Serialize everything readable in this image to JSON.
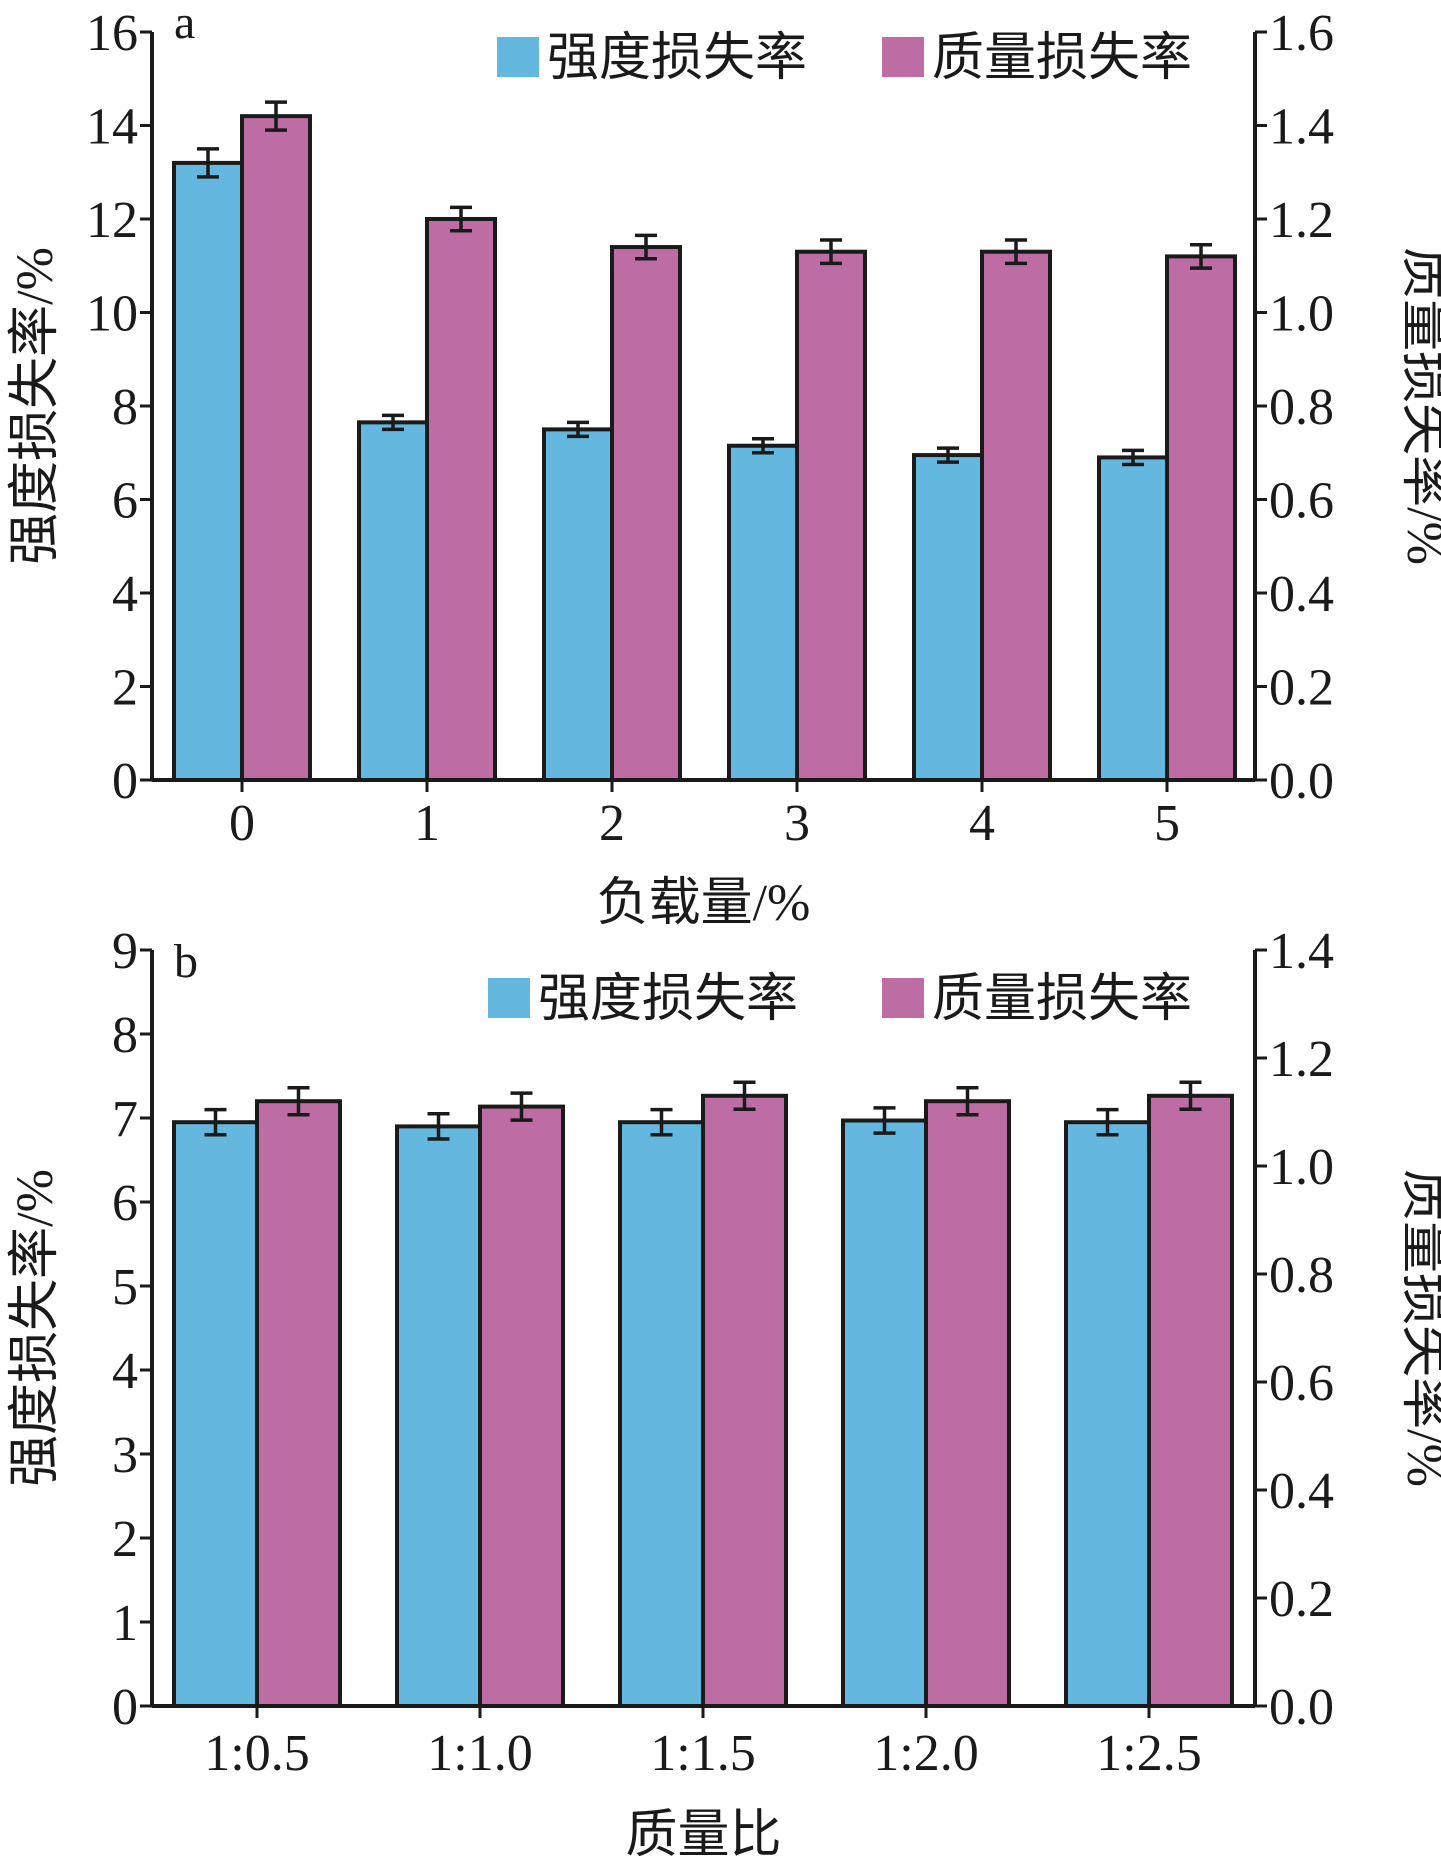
{
  "colors": {
    "strength": "#64b8e0",
    "mass": "#bd6da4",
    "axis": "#1a1a1a"
  },
  "chart_data": [
    {
      "type": "bar",
      "panel_label": "a",
      "categories": [
        "0",
        "1",
        "2",
        "3",
        "4",
        "5"
      ],
      "xlabel": "负载量/%",
      "ylabel_left": "强度损失率/%",
      "ylabel_right": "质量损失率/%",
      "ylim_left": [
        0,
        16
      ],
      "yticks_left": [
        "0",
        "2",
        "4",
        "6",
        "8",
        "10",
        "12",
        "14",
        "16"
      ],
      "ylim_right": [
        0,
        1.6
      ],
      "yticks_right": [
        "0.0",
        "0.2",
        "0.4",
        "0.6",
        "0.8",
        "1.0",
        "1.2",
        "1.4",
        "1.6"
      ],
      "legend_position": "top-right",
      "series": [
        {
          "name": "强度损失率",
          "axis": "left",
          "values": [
            13.2,
            7.65,
            7.5,
            7.15,
            6.95,
            6.9
          ],
          "errors": [
            0.3,
            0.15,
            0.15,
            0.15,
            0.15,
            0.15
          ]
        },
        {
          "name": "质量损失率",
          "axis": "right",
          "values": [
            1.42,
            1.2,
            1.14,
            1.13,
            1.13,
            1.12
          ],
          "errors": [
            0.03,
            0.025,
            0.025,
            0.025,
            0.025,
            0.025
          ]
        }
      ]
    },
    {
      "type": "bar",
      "panel_label": "b",
      "categories": [
        "1:0.5",
        "1:1.0",
        "1:1.5",
        "1:2.0",
        "1:2.5"
      ],
      "xlabel": "质量比",
      "ylabel_left": "强度损失率/%",
      "ylabel_right": "质量损失率/%",
      "ylim_left": [
        0,
        9
      ],
      "yticks_left": [
        "0",
        "1",
        "2",
        "3",
        "4",
        "5",
        "6",
        "7",
        "8",
        "9"
      ],
      "ylim_right": [
        0,
        1.4
      ],
      "yticks_right": [
        "0.0",
        "0.2",
        "0.4",
        "0.6",
        "0.8",
        "1.0",
        "1.2",
        "1.4"
      ],
      "legend_position": "top-right",
      "series": [
        {
          "name": "强度损失率",
          "axis": "left",
          "values": [
            6.95,
            6.9,
            6.95,
            6.97,
            6.95
          ],
          "errors": [
            0.15,
            0.15,
            0.15,
            0.15,
            0.15
          ]
        },
        {
          "name": "质量损失率",
          "axis": "right",
          "values": [
            1.12,
            1.11,
            1.13,
            1.12,
            1.13
          ],
          "errors": [
            0.025,
            0.025,
            0.025,
            0.025,
            0.025
          ]
        }
      ]
    }
  ]
}
